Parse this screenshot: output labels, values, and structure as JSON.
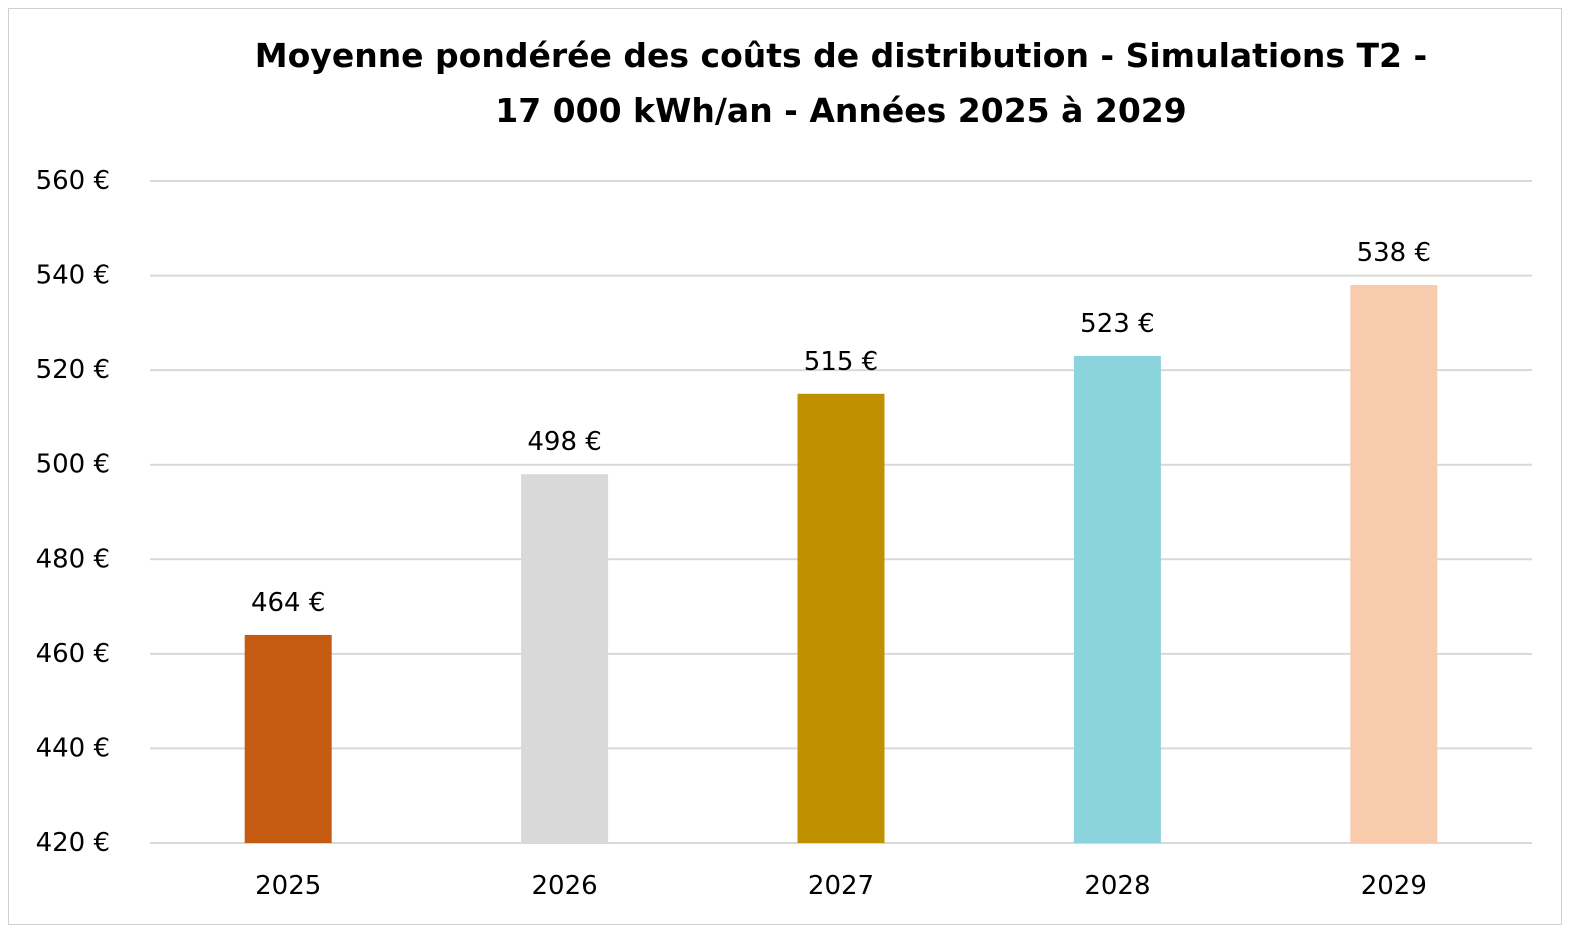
{
  "chart_data": {
    "type": "bar",
    "title_lines": [
      "Moyenne pondérée des coûts de distribution - Simulations T2 -",
      "17 000 kWh/an - Années 2025 à 2029"
    ],
    "categories": [
      "2025",
      "2026",
      "2027",
      "2028",
      "2029"
    ],
    "values": [
      464,
      498,
      515,
      523,
      538
    ],
    "value_labels": [
      "464 €",
      "498 €",
      "515 €",
      "523 €",
      "538 €"
    ],
    "bar_colors": [
      "#C55A11",
      "#D9D9D9",
      "#BF9000",
      "#8BD3DD",
      "#F8CBAD"
    ],
    "ylim": [
      420,
      560
    ],
    "y_ticks": [
      420,
      440,
      460,
      480,
      500,
      520,
      540,
      560
    ],
    "y_tick_labels": [
      "420 €",
      "440 €",
      "460 €",
      "480 €",
      "500 €",
      "520 €",
      "540 €",
      "560 €"
    ],
    "grid": true,
    "legend": "none",
    "gridline_color": "#D9D9D9"
  }
}
